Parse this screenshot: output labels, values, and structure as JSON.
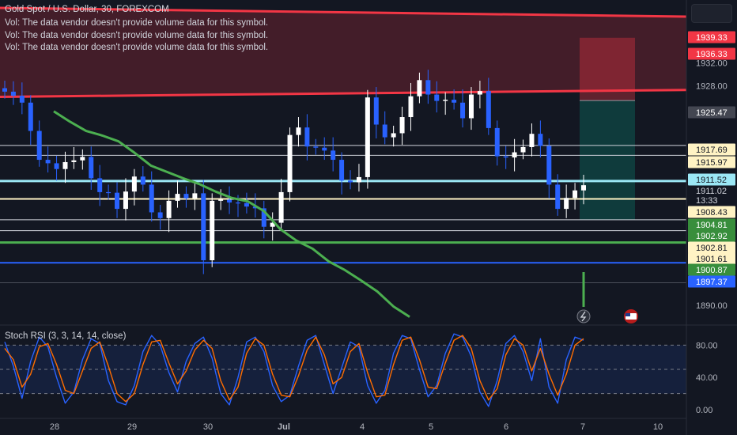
{
  "header": {
    "symbol_title": "Gold Spot / U.S. Dollar, 30, FOREXCOM",
    "volume_notes": [
      "Vol: The data vendor doesn't provide volume data for this symbol.",
      "Vol: The data vendor doesn't provide volume data for this symbol.",
      "Vol: The data vendor doesn't provide volume data for this symbol."
    ]
  },
  "colors": {
    "background": "#131722",
    "up": "#ffffff",
    "down": "#2962ff",
    "resistance": "#f23645",
    "support": "#4caf50",
    "blue_level": "#2962ff",
    "yellow_level": "#fff3c4",
    "cyan_level": "#9be7f5",
    "rsi_k": "#2962ff",
    "rsi_d": "#ff6d00"
  },
  "chart_data": [
    {
      "type": "candlestick",
      "title": "Gold Spot / U.S. Dollar, 30, FOREXCOM",
      "ylim": [
        1887.5,
        1941.5
      ],
      "y_ticks": [
        1890,
        1932,
        1928,
        1924
      ],
      "x_tick_labels": [
        "28",
        "29",
        "30",
        "Jul",
        "4",
        "5",
        "6",
        "7",
        "10"
      ],
      "current_price": 1911.02,
      "countdown": "13:33",
      "price_labels": [
        {
          "label": "1939.33",
          "kind": "red"
        },
        {
          "label": "1936.33",
          "kind": "red"
        },
        {
          "label": "1925.47",
          "kind": "gray"
        },
        {
          "label": "1917.69",
          "kind": "yellow"
        },
        {
          "label": "1915.97",
          "kind": "yellow"
        },
        {
          "label": "1911.52",
          "kind": "cyan"
        },
        {
          "label": "1908.43",
          "kind": "yellow"
        },
        {
          "label": "1904.81",
          "kind": "green"
        },
        {
          "label": "1902.92",
          "kind": "green"
        },
        {
          "label": "1902.81",
          "kind": "yellow"
        },
        {
          "label": "1901.61",
          "kind": "yellow"
        },
        {
          "label": "1900.87",
          "kind": "green"
        },
        {
          "label": "1897.37",
          "kind": "blue"
        }
      ],
      "horizontal_levels": [
        {
          "price": 1917.69,
          "kind": "white"
        },
        {
          "price": 1915.97,
          "kind": "white"
        },
        {
          "price": 1911.52,
          "kind": "cyan"
        },
        {
          "price": 1908.43,
          "kind": "yellow"
        },
        {
          "price": 1904.81,
          "kind": "white"
        },
        {
          "price": 1902.92,
          "kind": "white"
        },
        {
          "price": 1900.87,
          "kind": "green"
        },
        {
          "price": 1897.37,
          "kind": "blue"
        },
        {
          "price": 1893.9,
          "kind": "gray"
        }
      ],
      "resistance_zone": {
        "top": [
          1941.5,
          1940.0
        ],
        "bottom": [
          1926.1,
          1927.3
        ]
      },
      "position_box": {
        "entry": 1925.47,
        "stop": 1936.33,
        "target": 1904.81
      },
      "close_series": [
        1927.0,
        1926.3,
        1925.1,
        1920.2,
        1915.2,
        1914.6,
        1913.6,
        1914.8,
        1915.1,
        1915.7,
        1912.0,
        1909.6,
        1909.5,
        1906.7,
        1909.7,
        1912.3,
        1910.9,
        1906.1,
        1905.1,
        1908.1,
        1909.3,
        1908.5,
        1909.4,
        1897.8,
        1908.1,
        1908.3,
        1907.8,
        1907.7,
        1907.1,
        1906.8,
        1903.6,
        1904.3,
        1909.6,
        1919.5,
        1920.8,
        1917.5,
        1917.3,
        1916.8,
        1915.2,
        1911.6,
        1911.3,
        1912.2,
        1926.0,
        1921.3,
        1919.1,
        1919.8,
        1922.6,
        1926.2,
        1929.0,
        1926.5,
        1925.4,
        1925.6,
        1925.1,
        1922.4,
        1926.5,
        1927.1,
        1920.7,
        1915.8,
        1915.6,
        1916.5,
        1917.4,
        1919.7,
        1917.6,
        1910.9,
        1906.7,
        1908.6,
        1909.9,
        1910.8
      ]
    },
    {
      "type": "line",
      "title": "Stoch RSI (3, 3, 14, 14, close)",
      "ylim": [
        0,
        100
      ],
      "y_ticks": [
        0,
        40,
        80
      ],
      "y_tick_labels": [
        "0.00",
        "40.00",
        "80.00"
      ],
      "bands": [
        20,
        50,
        80
      ],
      "series": [
        {
          "name": "K",
          "values": [
            84,
            54,
            14,
            60,
            90,
            78,
            40,
            8,
            22,
            62,
            88,
            82,
            36,
            10,
            6,
            30,
            72,
            92,
            80,
            46,
            22,
            60,
            82,
            90,
            64,
            20,
            6,
            40,
            84,
            90,
            72,
            30,
            10,
            18,
            54,
            86,
            92,
            56,
            20,
            52,
            84,
            78,
            30,
            8,
            24,
            70,
            92,
            88,
            50,
            16,
            30,
            70,
            94,
            90,
            66,
            22,
            4,
            36,
            82,
            92,
            72,
            36,
            88,
            28,
            8,
            62,
            90,
            86
          ]
        },
        {
          "name": "D",
          "values": [
            76,
            62,
            28,
            44,
            78,
            82,
            56,
            24,
            20,
            48,
            76,
            84,
            54,
            20,
            10,
            20,
            56,
            84,
            86,
            58,
            32,
            48,
            74,
            86,
            76,
            36,
            12,
            28,
            70,
            88,
            80,
            44,
            18,
            16,
            42,
            74,
            90,
            68,
            32,
            40,
            72,
            82,
            46,
            16,
            18,
            56,
            86,
            90,
            62,
            28,
            26,
            58,
            86,
            92,
            76,
            36,
            12,
            26,
            68,
            88,
            80,
            48,
            76,
            44,
            18,
            44,
            80,
            88
          ]
        }
      ]
    }
  ],
  "extras": {
    "ma_curve": [
      1923.6,
      1921.8,
      1920.2,
      1919.4,
      1918.4,
      1916.4,
      1914.2,
      1913.1,
      1912.0,
      1911.0,
      1909.7,
      1908.6,
      1908.0,
      1906.3,
      1903.2,
      1901.2,
      1899.8,
      1897.6,
      1896.1,
      1894.3,
      1892.4,
      1889.8,
      1888.0
    ]
  }
}
